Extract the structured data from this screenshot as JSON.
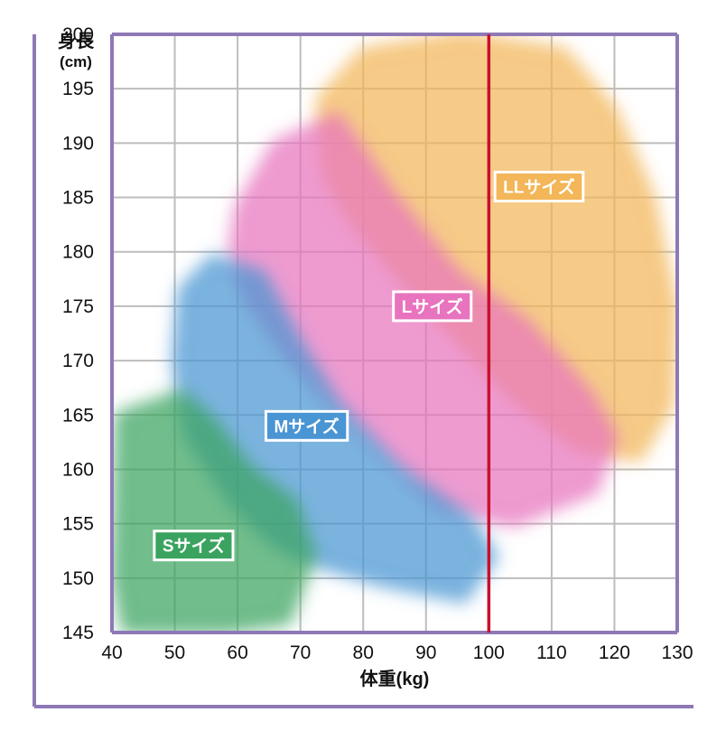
{
  "chart_data": {
    "type": "area",
    "title": "",
    "xlabel": "体重(kg)",
    "ylabel": "身長",
    "ylabel_unit": "(cm)",
    "xlim": [
      40,
      130
    ],
    "ylim": [
      145,
      200
    ],
    "x_ticks": [
      40,
      50,
      60,
      70,
      80,
      90,
      100,
      110,
      120,
      130
    ],
    "y_ticks": [
      200,
      195,
      190,
      185,
      180,
      175,
      170,
      165,
      160,
      155,
      150,
      145
    ],
    "grid": true,
    "reference_line": {
      "x": 100,
      "color": "#c8102e"
    },
    "regions": [
      {
        "label": "Sサイズ",
        "color": "#3aa35f",
        "label_at": {
          "x": 53,
          "y": 153
        },
        "polygon": [
          [
            41,
            165
          ],
          [
            51,
            167
          ],
          [
            56,
            164.5
          ],
          [
            62,
            160
          ],
          [
            69,
            157
          ],
          [
            72,
            152
          ],
          [
            68,
            146
          ],
          [
            58,
            145.2
          ],
          [
            42,
            145.2
          ],
          [
            40.5,
            150
          ]
        ]
      },
      {
        "label": "Mサイズ",
        "color": "#4a95d3",
        "label_at": {
          "x": 71,
          "y": 164
        },
        "polygon": [
          [
            51,
            176.5
          ],
          [
            56,
            179.5
          ],
          [
            64,
            178
          ],
          [
            70,
            171.5
          ],
          [
            76,
            166
          ],
          [
            86,
            160
          ],
          [
            97,
            155.5
          ],
          [
            101,
            152
          ],
          [
            96,
            148
          ],
          [
            83,
            149.5
          ],
          [
            74,
            151
          ],
          [
            66,
            153
          ],
          [
            59,
            157
          ],
          [
            52,
            163
          ],
          [
            50,
            170
          ]
        ]
      },
      {
        "label": "Lサイズ",
        "color": "#e873be",
        "label_at": {
          "x": 91,
          "y": 175
        },
        "polygon": [
          [
            60,
            184
          ],
          [
            66,
            190
          ],
          [
            76,
            192.5
          ],
          [
            85,
            185
          ],
          [
            95,
            178
          ],
          [
            106,
            173.5
          ],
          [
            116,
            167
          ],
          [
            120,
            163
          ],
          [
            117,
            158
          ],
          [
            104,
            155
          ],
          [
            92,
            156.5
          ],
          [
            82,
            162
          ],
          [
            74,
            166.5
          ],
          [
            67,
            171
          ],
          [
            61,
            176
          ],
          [
            59,
            180
          ]
        ]
      },
      {
        "label": "LLサイズ",
        "color": "#f3b658",
        "label_at": {
          "x": 108,
          "y": 186
        },
        "polygon": [
          [
            73,
            194
          ],
          [
            80,
            198.5
          ],
          [
            96,
            200
          ],
          [
            112,
            198.5
          ],
          [
            120,
            193
          ],
          [
            126,
            185
          ],
          [
            129.5,
            175
          ],
          [
            129,
            166
          ],
          [
            124,
            161
          ],
          [
            114,
            162
          ],
          [
            104,
            166.5
          ],
          [
            95,
            172
          ],
          [
            86,
            177.5
          ],
          [
            78,
            183
          ],
          [
            74,
            187
          ]
        ]
      }
    ]
  }
}
